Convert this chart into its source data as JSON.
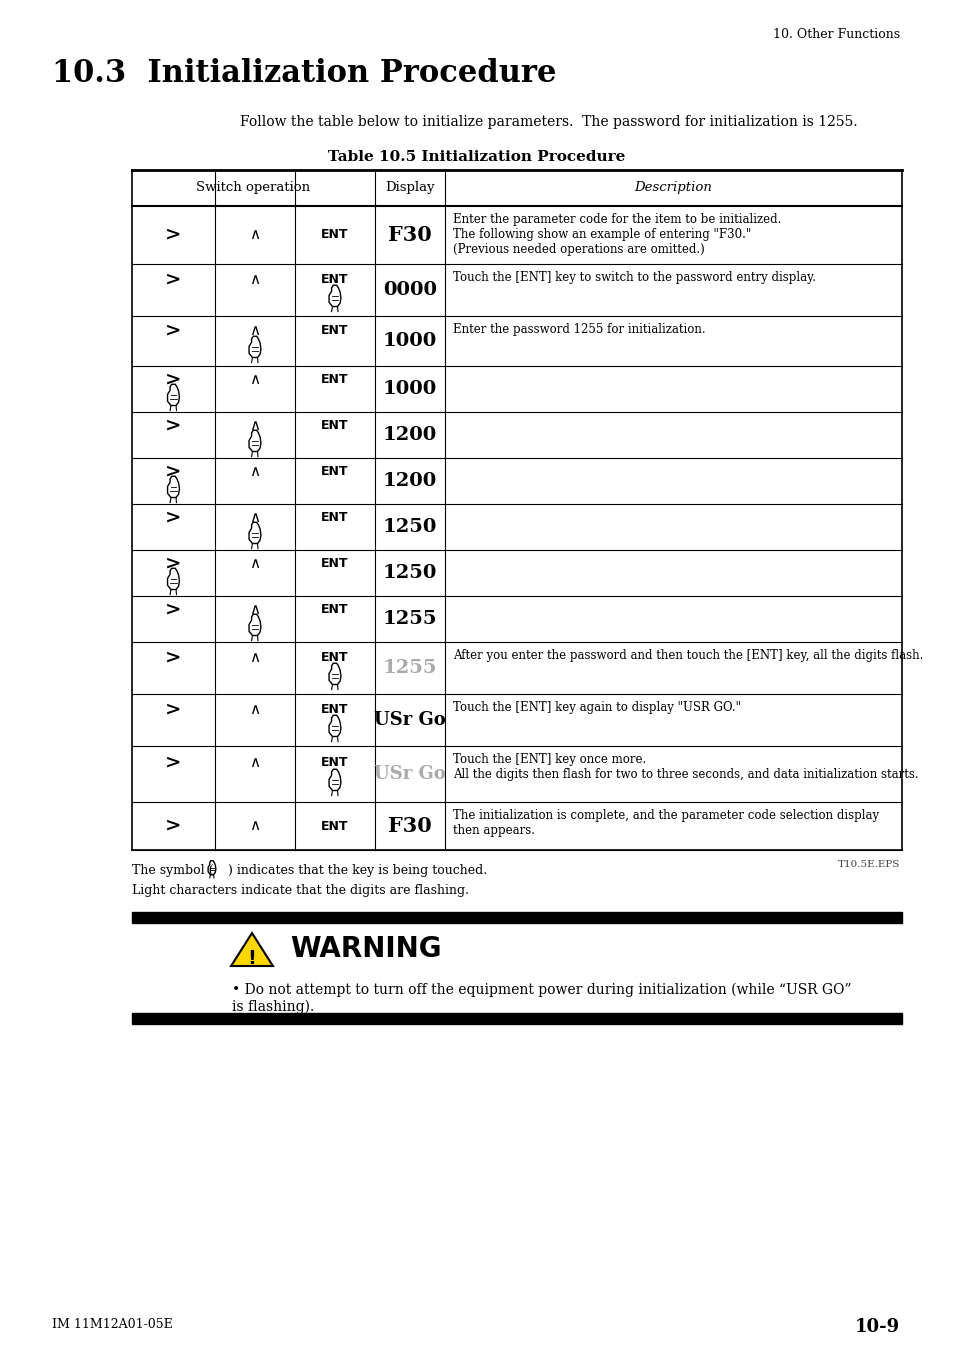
{
  "page_title": "10.3  Initialization Procedure",
  "header_right": "10. Other Functions",
  "intro_text": "Follow the table below to initialize parameters.  The password for initialization is 1255.",
  "table_title": "Table 10.5 Initialization Procedure",
  "col_headers": [
    "Switch operation",
    "Display",
    "Description"
  ],
  "rows": [
    {
      "ent_touched": false,
      "gt_touched": false,
      "caret_touched": false,
      "display": "F30",
      "display_light": false,
      "desc": "Enter the parameter code for the item to be initialized.\nThe following show an example of entering \"F30.\"\n(Previous needed operations are omitted.)"
    },
    {
      "ent_touched": true,
      "gt_touched": false,
      "caret_touched": false,
      "display": "0000",
      "display_light": false,
      "desc": "Touch the [ENT] key to switch to the password entry display."
    },
    {
      "ent_touched": false,
      "gt_touched": false,
      "caret_touched": true,
      "display": "1000",
      "display_light": false,
      "desc": "Enter the password 1255 for initialization."
    },
    {
      "ent_touched": false,
      "gt_touched": true,
      "caret_touched": false,
      "display": "1000",
      "display_light": false,
      "desc": ""
    },
    {
      "ent_touched": false,
      "gt_touched": false,
      "caret_touched": true,
      "display": "1200",
      "display_light": false,
      "desc": ""
    },
    {
      "ent_touched": false,
      "gt_touched": true,
      "caret_touched": false,
      "display": "1200",
      "display_light": false,
      "desc": ""
    },
    {
      "ent_touched": false,
      "gt_touched": false,
      "caret_touched": true,
      "display": "1250",
      "display_light": false,
      "desc": ""
    },
    {
      "ent_touched": false,
      "gt_touched": true,
      "caret_touched": false,
      "display": "1250",
      "display_light": false,
      "desc": ""
    },
    {
      "ent_touched": false,
      "gt_touched": false,
      "caret_touched": true,
      "display": "1255",
      "display_light": false,
      "desc": ""
    },
    {
      "ent_touched": true,
      "gt_touched": false,
      "caret_touched": false,
      "display": "1255",
      "display_light": true,
      "desc": "After you enter the password and then touch the [ENT] key, all the digits flash."
    },
    {
      "ent_touched": true,
      "gt_touched": false,
      "caret_touched": false,
      "display": "USr Go",
      "display_light": false,
      "desc": "Touch the [ENT] key again to display \"USR GO.\""
    },
    {
      "ent_touched": true,
      "gt_touched": false,
      "caret_touched": false,
      "display": "USr Go",
      "display_light": true,
      "desc": "Touch the [ENT] key once more.\nAll the digits then flash for two to three seconds, and data initialization starts."
    },
    {
      "ent_touched": false,
      "gt_touched": false,
      "caret_touched": false,
      "display": "F30",
      "display_light": false,
      "desc": "The initialization is complete, and the parameter code selection display\nthen appears."
    }
  ],
  "footnote3": "Light characters indicate that the digits are flashing.",
  "file_ref": "T10.5E.EPS",
  "warning_text": "Do not attempt to turn off the equipment power during initialization (while “USR GO”\nis flashing).",
  "footer_left": "IM 11M12A01-05E",
  "footer_right": "10-9",
  "bg_color": "#ffffff",
  "text_color": "#000000",
  "light_color": "#aaaaaa"
}
